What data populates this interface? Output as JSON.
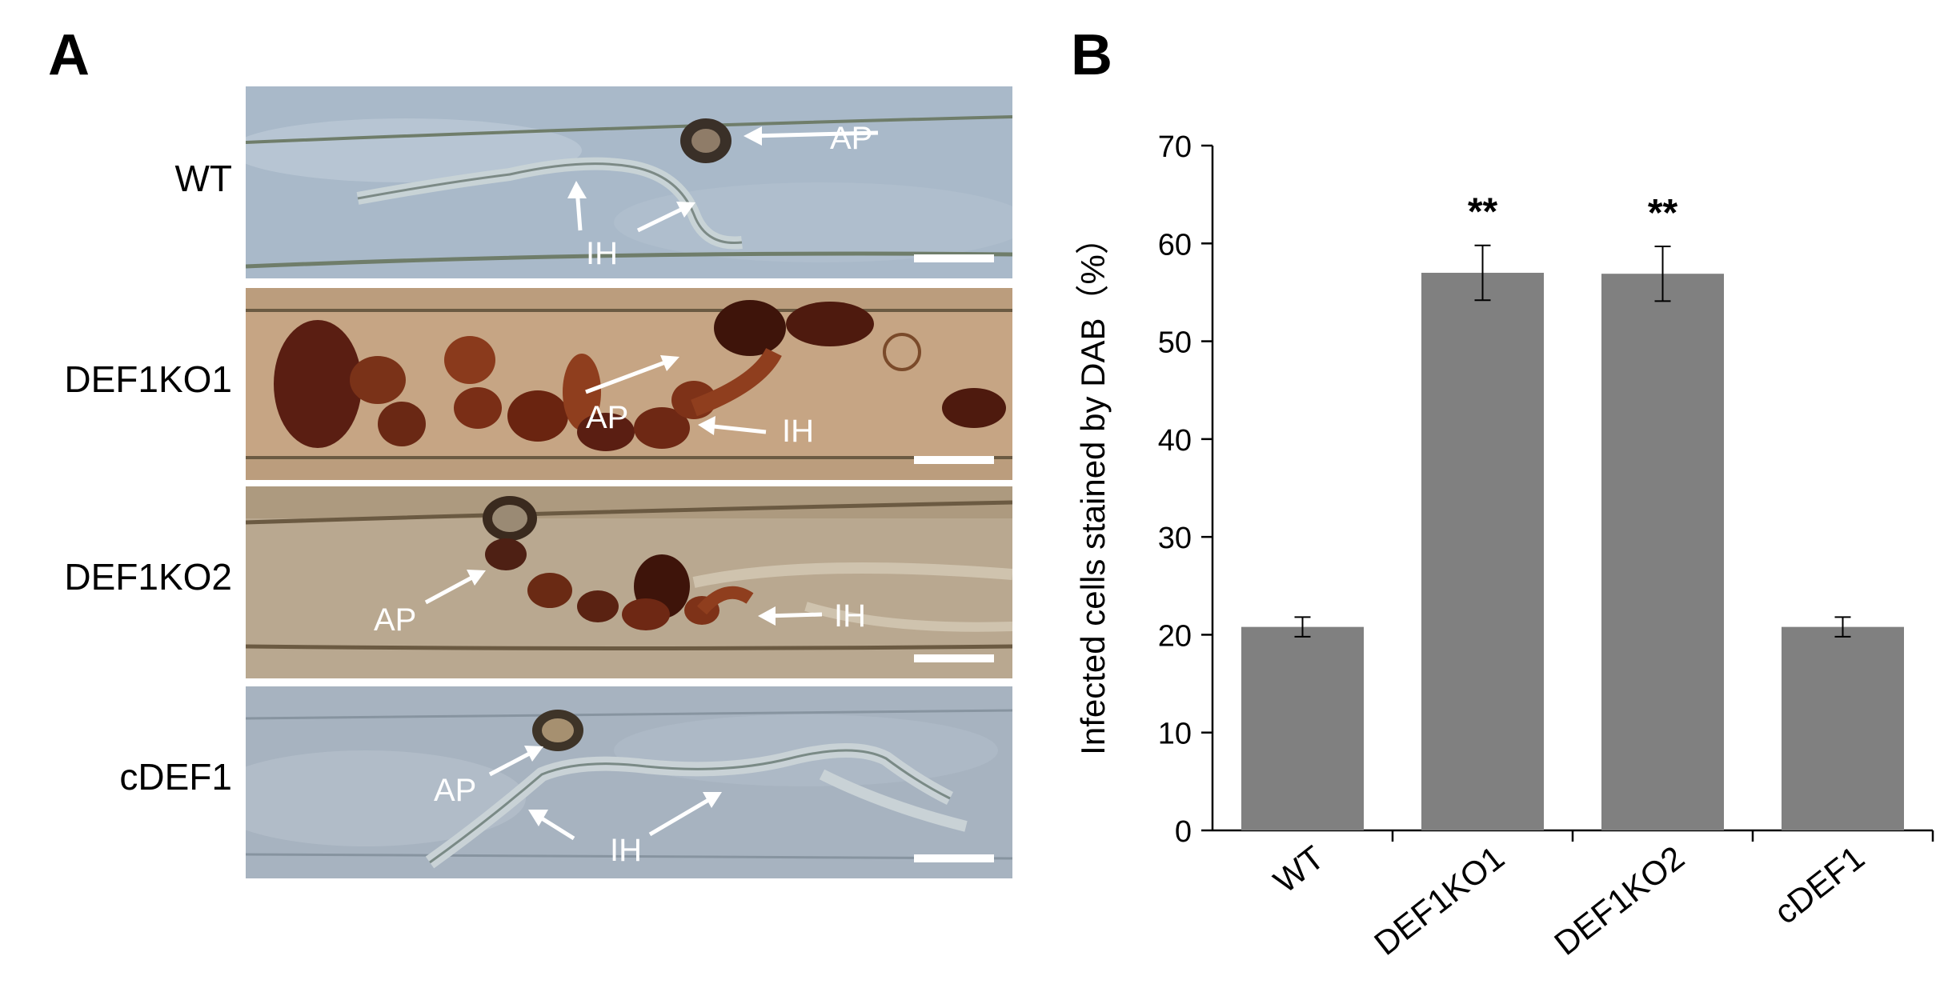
{
  "panel_labels": {
    "a": "A",
    "b": "B"
  },
  "micrographs": [
    {
      "label": "WT",
      "arrows": [
        "AP",
        "IH"
      ],
      "background": "#a9b9c9",
      "stain": "#3a3028"
    },
    {
      "label": "DEF1KO1",
      "arrows": [
        "AP",
        "IH"
      ],
      "background": "#c6a584",
      "stain": "#5a1e12"
    },
    {
      "label": "DEF1KO2",
      "arrows": [
        "AP",
        "IH"
      ],
      "background": "#b9a890",
      "stain": "#4e2014"
    },
    {
      "label": "cDEF1",
      "arrows": [
        "AP",
        "IH"
      ],
      "background": "#a7b3c0",
      "stain": "#3e3428"
    }
  ],
  "chart_data": {
    "type": "bar",
    "categories": [
      "WT",
      "DEF1KO1",
      "DEF1KO2",
      "cDEF1"
    ],
    "values": [
      20.8,
      57.0,
      56.9,
      20.8
    ],
    "errors": [
      1.0,
      2.8,
      2.8,
      1.0
    ],
    "annotations": [
      "",
      "**",
      "**",
      ""
    ],
    "ylabel": "Infected cells stained by DAB（%）",
    "xlabel": "",
    "ylim": [
      0,
      70
    ],
    "yticks": [
      0,
      10,
      20,
      30,
      40,
      50,
      60,
      70
    ],
    "bar_color": "#808080",
    "grid": false,
    "legend": "none"
  }
}
